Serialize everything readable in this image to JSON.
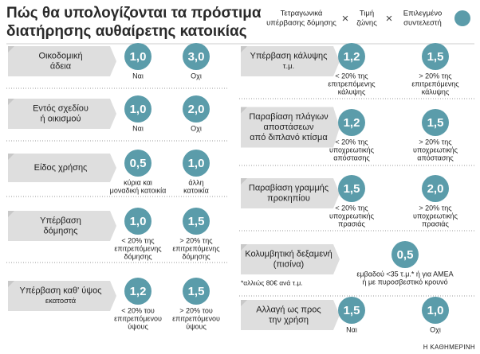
{
  "title": [
    "Πώς θα υπολογίζονται τα πρόστιμα",
    "διατήρησης αυθαίρετης κατοικίας"
  ],
  "formula": {
    "terms": [
      [
        "Τετραγωνικά",
        "υπέρβασης δόμησης"
      ],
      [
        "Τιμή",
        "ζώνης"
      ],
      [
        "Επιλεγμένο",
        "συντελεστή"
      ]
    ],
    "operator": "×"
  },
  "items": [
    {
      "label": [
        "Οικοδομική",
        "άδεια"
      ],
      "options": [
        {
          "value": "1,0",
          "caption": [
            "Ναι"
          ]
        },
        {
          "value": "3,0",
          "caption": [
            "Οχι"
          ]
        }
      ]
    },
    {
      "label": [
        "Εντός σχεδίου",
        "ή οικισμού"
      ],
      "options": [
        {
          "value": "1,0",
          "caption": [
            "Ναι"
          ]
        },
        {
          "value": "2,0",
          "caption": [
            "Οχι"
          ]
        }
      ]
    },
    {
      "label": [
        "Είδος χρήσης"
      ],
      "options": [
        {
          "value": "0,5",
          "caption": [
            "κύρια και",
            "μοναδική κατοικία"
          ]
        },
        {
          "value": "1,0",
          "caption": [
            "άλλη",
            "κατοικία"
          ]
        }
      ]
    },
    {
      "label": [
        "Υπέρβαση",
        "δόμησης"
      ],
      "options": [
        {
          "value": "1,0",
          "caption": [
            "< 20% της",
            "επιτρεπόμενης",
            "δόμησης"
          ]
        },
        {
          "value": "1,5",
          "caption": [
            "> 20% της",
            "επιτρεπόμενης",
            "δόμησης"
          ]
        }
      ]
    },
    {
      "label": [
        "Υπέρβαση καθ' ύψος"
      ],
      "sublabel": "εκατοστά",
      "options": [
        {
          "value": "1,2",
          "caption": [
            "< 20% του",
            "επιτρεπόμενου",
            "ύψους"
          ]
        },
        {
          "value": "1,5",
          "caption": [
            "> 20% του",
            "επιτρεπόμενου",
            "ύψους"
          ]
        }
      ]
    },
    {
      "label": [
        "Υπέρβαση κάλυψης"
      ],
      "sublabel": "τ.μ.",
      "options": [
        {
          "value": "1,2",
          "caption": [
            "< 20% της",
            "επιτρεπόμενης",
            "κάλυψης"
          ]
        },
        {
          "value": "1,5",
          "caption": [
            "> 20% της",
            "επιτρεπόμενης",
            "κάλυψης"
          ]
        }
      ]
    },
    {
      "label": [
        "Παραβίαση πλάγιων",
        "αποστάσεων",
        "από διπλανό κτίσμα"
      ],
      "options": [
        {
          "value": "1,2",
          "caption": [
            "< 20% της",
            "υποχρεωτικής",
            "απόστασης"
          ]
        },
        {
          "value": "1,5",
          "caption": [
            "> 20% της",
            "υποχρεωτικής",
            "απόστασης"
          ]
        }
      ]
    },
    {
      "label": [
        "Παραβίαση γραμμής",
        "προκηπίου"
      ],
      "options": [
        {
          "value": "1,5",
          "caption": [
            "< 20% της",
            "υποχρεωτικής",
            "πρασιάς"
          ]
        },
        {
          "value": "2,0",
          "caption": [
            "> 20% της",
            "υποχρεωτικής",
            "πρασιάς"
          ]
        }
      ]
    },
    {
      "label": [
        "Κολυμβητική δεξαμενή",
        "(πισίνα)"
      ],
      "note": "*αλλιώς 80€ ανά τ.μ.",
      "options": [
        {
          "value": "0,5",
          "caption": [
            "εμβαδού <35 τ.μ.* ή για ΑΜΕΑ",
            "ή με πυροσβεστικό κρουνό"
          ]
        }
      ]
    },
    {
      "label": [
        "Αλλαγή ως προς",
        "την χρήση"
      ],
      "options": [
        {
          "value": "1,5",
          "caption": [
            "Ναι"
          ]
        },
        {
          "value": "1,0",
          "caption": [
            "Οχι"
          ]
        }
      ]
    }
  ],
  "source": "Η ΚΑΘΗΜΕΡΙΝΗ"
}
